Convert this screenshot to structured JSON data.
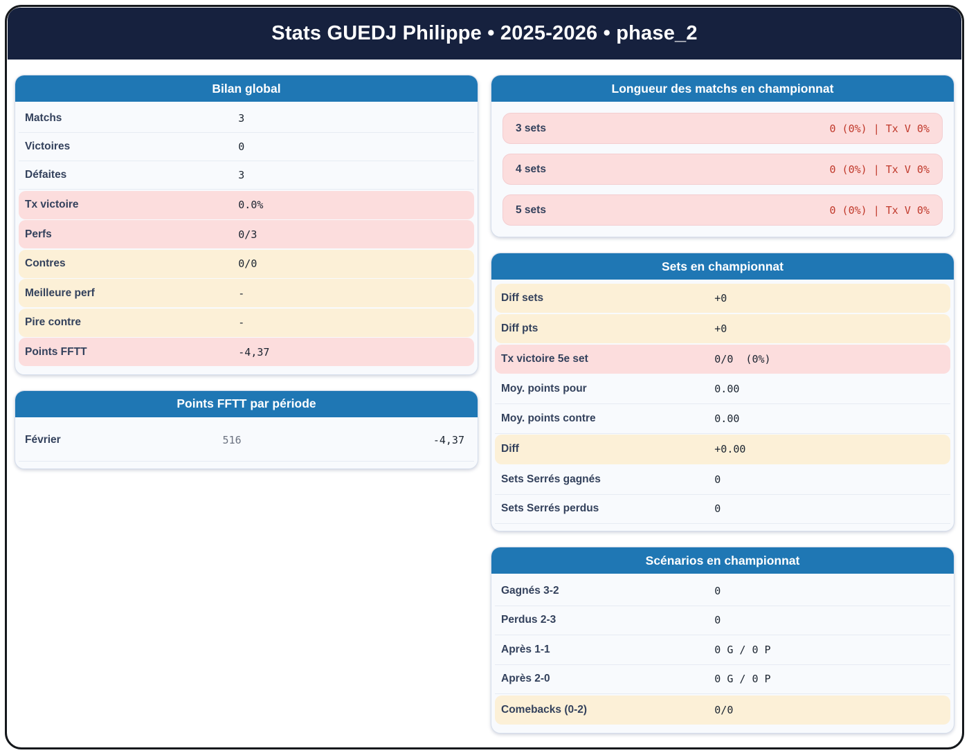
{
  "title": "Stats GUEDJ Philippe • 2025-2026 • phase_2",
  "colors": {
    "header_navy": "#16213e",
    "card_header_blue": "#1f77b4",
    "highlight_pink": "#fcdddd",
    "highlight_cream": "#fcf0d7",
    "alert_red_text": "#c0392b",
    "label_slate": "#33415c"
  },
  "cards": {
    "bilan": {
      "header": "Bilan global",
      "rows": [
        {
          "label": "Matchs",
          "value": "3",
          "variant": "plain"
        },
        {
          "label": "Victoires",
          "value": "0",
          "variant": "plain"
        },
        {
          "label": "Défaites",
          "value": "3",
          "variant": "plain"
        },
        {
          "label": "Tx victoire",
          "value": "0.0%",
          "variant": "pink"
        },
        {
          "label": "Perfs",
          "value": "0/3",
          "variant": "pink"
        },
        {
          "label": "Contres",
          "value": "0/0",
          "variant": "cream"
        },
        {
          "label": "Meilleure perf",
          "value": "-",
          "variant": "cream"
        },
        {
          "label": "Pire contre",
          "value": "-",
          "variant": "cream"
        },
        {
          "label": "Points FFTT",
          "value": "-4,37",
          "variant": "pink"
        }
      ]
    },
    "periode": {
      "header": "Points FFTT par période",
      "rows": [
        {
          "label": "Février",
          "mid": "516",
          "value": "-4,37"
        }
      ]
    },
    "longueur": {
      "header": "Longueur des matchs en championnat",
      "rows": [
        {
          "label": "3 sets",
          "value": "0 (0%) | Tx V 0%"
        },
        {
          "label": "4 sets",
          "value": "0 (0%) | Tx V 0%"
        },
        {
          "label": "5 sets",
          "value": "0 (0%) | Tx V 0%"
        }
      ]
    },
    "sets": {
      "header": "Sets en championnat",
      "rows": [
        {
          "label": "Diff sets",
          "value": "+0",
          "variant": "cream"
        },
        {
          "label": "Diff pts",
          "value": "+0",
          "variant": "cream"
        },
        {
          "label": "Tx victoire 5e set",
          "value": "0/0  (0%)",
          "variant": "pink"
        },
        {
          "label": "Moy. points pour",
          "value": "0.00",
          "variant": "plain"
        },
        {
          "label": "Moy. points contre",
          "value": "0.00",
          "variant": "plain"
        },
        {
          "label": "Diff",
          "value": "+0.00",
          "variant": "cream"
        },
        {
          "label": "Sets Serrés gagnés",
          "value": "0",
          "variant": "plain"
        },
        {
          "label": "Sets Serrés perdus",
          "value": "0",
          "variant": "plain"
        }
      ]
    },
    "scenarios": {
      "header": "Scénarios en championnat",
      "rows": [
        {
          "label": "Gagnés 3-2",
          "value": "0",
          "variant": "plain"
        },
        {
          "label": "Perdus 2-3",
          "value": "0",
          "variant": "plain"
        },
        {
          "label": "Après 1-1",
          "value": "0 G / 0 P",
          "variant": "plain"
        },
        {
          "label": "Après 2-0",
          "value": "0 G / 0 P",
          "variant": "plain"
        },
        {
          "label": "Comebacks (0-2)",
          "value": "0/0",
          "variant": "cream"
        }
      ]
    }
  }
}
